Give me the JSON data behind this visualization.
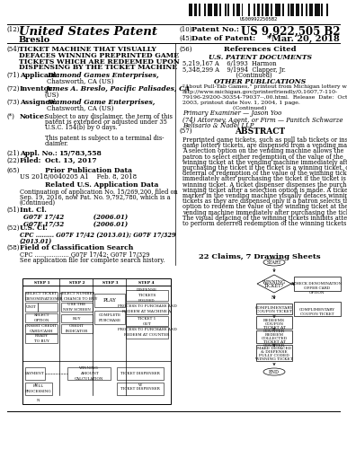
{
  "background_color": "#ffffff",
  "barcode_text": "US009922505B2",
  "patent_number": "US 9,922,505 B2",
  "patent_date": "*Mar. 20, 2018",
  "inventor_name": "Breslo",
  "title_lines": [
    "TICKET MACHINE THAT VISUALLY",
    "DEFACES WINNING PREPRINTED GAME",
    "TICKETS WHICH ARE REDEEMED UPON",
    "DISPENSING BY THE TICKET MACHINE"
  ],
  "applicant_label": "Applicant:",
  "applicant": "Diamond Games Enterprises,",
  "applicant2": "Chatsworth, CA (US)",
  "inventor_label": "Inventor:",
  "inventor": "James A. Breslo, Pacific Palisades, CA",
  "inventor2": "(US)",
  "assignee_label": "Assignee:",
  "assignee": "Diamond Game Enterprises,",
  "assignee2": "Chatsworth, CA (US)",
  "notice_label": "Notice:",
  "notice_lines": [
    "Subject to any disclaimer, the term of this",
    "patent is extended or adjusted under 35",
    "U.S.C. 154(b) by 0 days.",
    "",
    "This patent is subject to a terminal dis-",
    "claimer."
  ],
  "appl_no": "15/783,558",
  "filed": "Oct. 13, 2017",
  "prior_pub_label": "Prior Publication Data",
  "prior_pub": "US 2018/0040205 A1    Feb. 8, 2018",
  "related_label": "Related U.S. Application Data",
  "related_lines": [
    "Continuation of application No. 15/269,200, filed on",
    "Sep. 19, 2016, now Pat. No. 9,792,780, which is a",
    "(Continued)"
  ],
  "int_cl_label": "Int. Cl.",
  "int_cl_lines": [
    "G07F 17/42             (2006.01)",
    "G07F 17/32             (2006.01)"
  ],
  "us_cl_label": "U.S. Cl.",
  "us_cl_lines": [
    "CPC ......... G07F 17/42 (2013.01); G07F 17/329",
    "(2013.01)"
  ],
  "field_label": "Field of Classification Search",
  "field_lines": [
    "CPC .................. G07F 17/42; G07F 17/329",
    "See application file for complete search history."
  ],
  "ref_cited": "References Cited",
  "us_patent_docs": "U.S. PATENT DOCUMENTS",
  "patent_refs": [
    "5,219,167 A    6/1993  Harmon",
    "5,348,299 A    9/1994  Clapper, Jr.",
    "                            (Continued)"
  ],
  "other_pub": "OTHER PUBLICATIONS",
  "other_pub_lines": [
    "\"About Pull-Tab Games,\" printout from Michigan lottery web site:",
    "http://www.michigan.gov/printerfriendly/0,1607,7-110-",
    "79196-29200-30354-79037--,00.html.  Release  Date:  Oct.  27,",
    "2003, printout date Nov. 1, 2004, 1 page.",
    "                            (Continued)"
  ],
  "primary_examiner": "Primary Examiner — Jason Yoo",
  "attorney_lines": [
    "(74) Attorney, Agent, or Firm — Panitch Schwarze",
    "Belisario & Nadel LLP"
  ],
  "abstract_label": "ABSTRACT",
  "abstract_lines": [
    "Preprinted game tickets, such as pull tab tickets or instant",
    "game lottery tickets, are dispensed from a vending machine.",
    "A selection option on the vending machine allows the",
    "patron to select either redemption of the value of the",
    "winning ticket at the vending machine immediately after",
    "purchasing the ticket if the ticket is a winning ticket, or",
    "deferral of redemption of the value of the winning ticket",
    "immediately after purchasing the ticket if the ticket is a",
    "winning ticket. A ticket dispenser dispenses the purchased",
    "winning ticket after a selection option is made. A ticket",
    "marker in the vending machine visually defaces winning",
    "tickets as they are dispensed only if a patron selects the",
    "option to redeem the value of the winning ticket at the",
    "vending machine immediately after purchasing the ticket.",
    "The visual defacing of the winning tickets inhibits attempts",
    "to perform deferred redemption of the winning tickets."
  ],
  "claims": "22 Claims, 7 Drawing Sheets"
}
